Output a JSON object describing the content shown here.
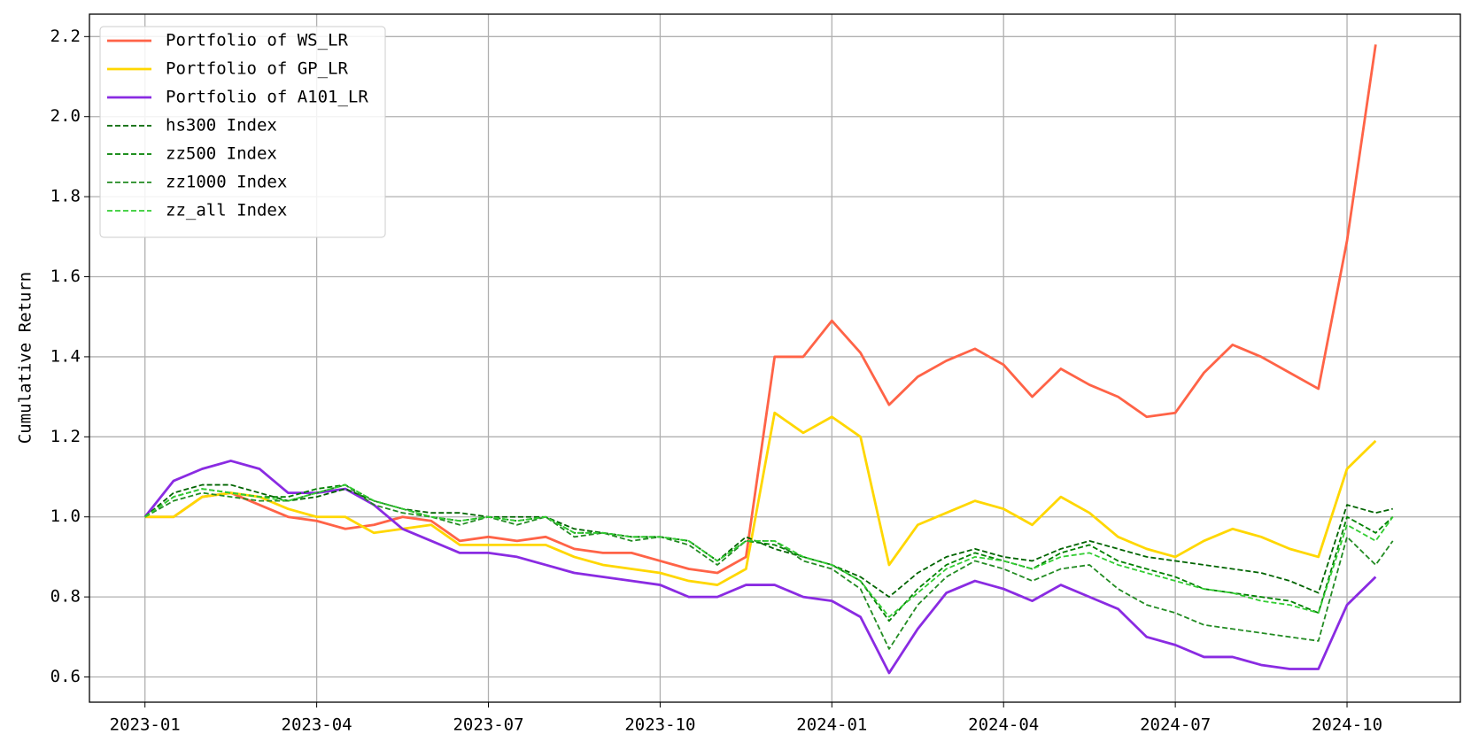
{
  "chart_data": {
    "type": "line",
    "ylabel": "Cumulative Return",
    "x": [
      0,
      0.5,
      1,
      1.5,
      2,
      2.5,
      3,
      3.5,
      4,
      4.5,
      5,
      5.5,
      6,
      6.5,
      7,
      7.5,
      8,
      8.5,
      9,
      9.5,
      10,
      10.5,
      11,
      11.5,
      12,
      12.5,
      13,
      13.5,
      14,
      14.5,
      15,
      15.5,
      16,
      16.5,
      17,
      17.5,
      18,
      18.5,
      19,
      19.5,
      20,
      20.5,
      21,
      21.5,
      21.8
    ],
    "xlim": [
      -0.97,
      22.98
    ],
    "xticks": [
      {
        "value": 0,
        "label": "2023-01"
      },
      {
        "value": 3,
        "label": "2023-04"
      },
      {
        "value": 6,
        "label": "2023-07"
      },
      {
        "value": 9,
        "label": "2023-10"
      },
      {
        "value": 12,
        "label": "2024-01"
      },
      {
        "value": 15,
        "label": "2024-04"
      },
      {
        "value": 18,
        "label": "2024-07"
      },
      {
        "value": 21,
        "label": "2024-10"
      }
    ],
    "ylim": [
      0.537,
      2.256
    ],
    "yticks": [
      0.6,
      0.8,
      {
        "value": 1,
        "label": "1.0"
      },
      1.2,
      1.4,
      1.6,
      1.8,
      {
        "value": 2,
        "label": "2.0"
      },
      2.2
    ],
    "grid": true,
    "legend": "upper left",
    "series": [
      {
        "name": "Portfolio of WS_LR",
        "color": "#ff6347",
        "linestyle": "solid",
        "values": [
          1.0,
          1.0,
          1.05,
          1.06,
          1.03,
          1.0,
          0.99,
          0.97,
          0.98,
          1.0,
          0.99,
          0.94,
          0.95,
          0.94,
          0.95,
          0.92,
          0.91,
          0.91,
          0.89,
          0.87,
          0.86,
          0.9,
          1.4,
          1.4,
          1.49,
          1.41,
          1.28,
          1.35,
          1.39,
          1.42,
          1.38,
          1.3,
          1.37,
          1.33,
          1.3,
          1.25,
          1.26,
          1.36,
          1.43,
          1.4,
          1.36,
          1.32,
          1.69,
          2.18,
          null
        ]
      },
      {
        "name": "Portfolio of GP_LR",
        "color": "#ffd700",
        "linestyle": "solid",
        "values": [
          1.0,
          1.0,
          1.05,
          1.06,
          1.05,
          1.02,
          1.0,
          1.0,
          0.96,
          0.97,
          0.98,
          0.93,
          0.93,
          0.93,
          0.93,
          0.9,
          0.88,
          0.87,
          0.86,
          0.84,
          0.83,
          0.87,
          1.26,
          1.21,
          1.25,
          1.2,
          0.88,
          0.98,
          1.01,
          1.04,
          1.02,
          0.98,
          1.05,
          1.01,
          0.95,
          0.92,
          0.9,
          0.94,
          0.97,
          0.95,
          0.92,
          0.9,
          1.12,
          1.19,
          null
        ]
      },
      {
        "name": "Portfolio of A101_LR",
        "color": "#8a2be2",
        "linestyle": "solid",
        "values": [
          1.0,
          1.09,
          1.12,
          1.14,
          1.12,
          1.06,
          1.06,
          1.07,
          1.03,
          0.97,
          0.94,
          0.91,
          0.91,
          0.9,
          0.88,
          0.86,
          0.85,
          0.84,
          0.83,
          0.8,
          0.8,
          0.83,
          0.83,
          0.8,
          0.79,
          0.75,
          0.61,
          0.72,
          0.81,
          0.84,
          0.82,
          0.79,
          0.83,
          0.8,
          0.77,
          0.7,
          0.68,
          0.65,
          0.65,
          0.63,
          0.62,
          0.62,
          0.78,
          0.85,
          null
        ]
      },
      {
        "name": "hs300 Index",
        "color": "#006400",
        "linestyle": "dashed",
        "values": [
          1.0,
          1.06,
          1.08,
          1.08,
          1.06,
          1.04,
          1.05,
          1.07,
          1.04,
          1.02,
          1.01,
          1.01,
          1.0,
          1.0,
          1.0,
          0.97,
          0.96,
          0.95,
          0.95,
          0.94,
          0.89,
          0.95,
          0.92,
          0.9,
          0.88,
          0.85,
          0.8,
          0.86,
          0.9,
          0.92,
          0.9,
          0.89,
          0.92,
          0.94,
          0.92,
          0.9,
          0.89,
          0.88,
          0.87,
          0.86,
          0.84,
          0.81,
          1.03,
          1.01,
          1.02
        ]
      },
      {
        "name": "zz500 Index",
        "color": "#008000",
        "linestyle": "dashed",
        "values": [
          1.0,
          1.05,
          1.07,
          1.06,
          1.05,
          1.05,
          1.07,
          1.08,
          1.04,
          1.02,
          1.0,
          0.99,
          1.0,
          0.99,
          1.0,
          0.96,
          0.96,
          0.95,
          0.95,
          0.94,
          0.89,
          0.94,
          0.93,
          0.9,
          0.88,
          0.84,
          0.74,
          0.82,
          0.88,
          0.91,
          0.89,
          0.87,
          0.91,
          0.93,
          0.89,
          0.87,
          0.85,
          0.82,
          0.81,
          0.8,
          0.79,
          0.76,
          1.0,
          0.96,
          1.0
        ]
      },
      {
        "name": "zz1000 Index",
        "color": "#228b22",
        "linestyle": "dashed",
        "values": [
          1.0,
          1.04,
          1.06,
          1.05,
          1.04,
          1.04,
          1.06,
          1.08,
          1.03,
          1.01,
          1.0,
          0.98,
          1.0,
          0.98,
          1.0,
          0.95,
          0.96,
          0.94,
          0.95,
          0.93,
          0.88,
          0.94,
          0.94,
          0.89,
          0.87,
          0.82,
          0.67,
          0.78,
          0.85,
          0.89,
          0.87,
          0.84,
          0.87,
          0.88,
          0.82,
          0.78,
          0.76,
          0.73,
          0.72,
          0.71,
          0.7,
          0.69,
          0.95,
          0.88,
          0.94
        ]
      },
      {
        "name": "zz_all Index",
        "color": "#32cd32",
        "linestyle": "dashed",
        "values": [
          1.0,
          1.05,
          1.07,
          1.06,
          1.05,
          1.04,
          1.06,
          1.08,
          1.04,
          1.02,
          1.0,
          0.99,
          1.0,
          0.99,
          1.0,
          0.96,
          0.96,
          0.95,
          0.95,
          0.94,
          0.89,
          0.94,
          0.94,
          0.9,
          0.88,
          0.84,
          0.75,
          0.81,
          0.87,
          0.9,
          0.89,
          0.87,
          0.9,
          0.91,
          0.88,
          0.86,
          0.84,
          0.82,
          0.81,
          0.79,
          0.78,
          0.76,
          0.98,
          0.94,
          1.0
        ]
      }
    ]
  }
}
